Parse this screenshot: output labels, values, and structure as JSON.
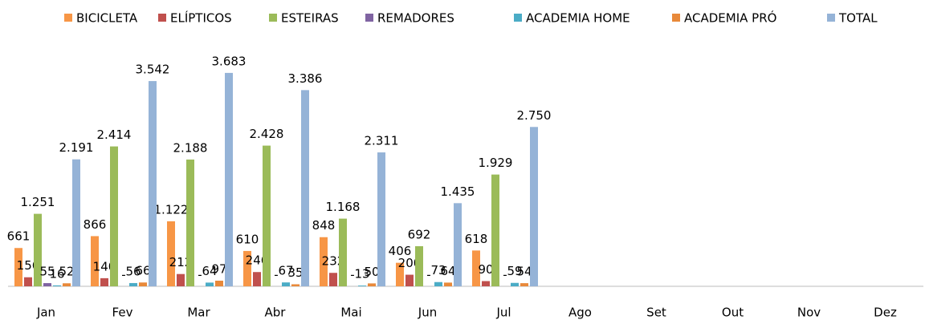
{
  "chart_data": {
    "type": "bar",
    "categories": [
      "Jan",
      "Fev",
      "Mar",
      "Abr",
      "Mai",
      "Jun",
      "Jul",
      "Ago",
      "Set",
      "Out",
      "Nov",
      "Dez"
    ],
    "series": [
      {
        "name": "BICICLETA",
        "color": "#f79646",
        "values": [
          661,
          866,
          1122,
          610,
          848,
          406,
          618,
          null,
          null,
          null,
          null,
          null
        ],
        "value_labels": [
          "661",
          "866",
          "1.122",
          "610",
          "848",
          "406",
          "618",
          null,
          null,
          null,
          null,
          null
        ]
      },
      {
        "name": "ELÍPTICOS",
        "color": "#c0504d",
        "values": [
          156,
          140,
          212,
          246,
          232,
          200,
          90,
          null,
          null,
          null,
          null,
          null
        ],
        "value_labels": [
          "156",
          "140",
          "212",
          "246",
          "232",
          "200",
          "90",
          null,
          null,
          null,
          null,
          null
        ]
      },
      {
        "name": "ESTEIRAS",
        "color": "#9bbb59",
        "values": [
          1251,
          2414,
          2188,
          2428,
          1168,
          692,
          1929,
          null,
          null,
          null,
          null,
          null
        ],
        "value_labels": [
          "1.251",
          "2.414",
          "2.188",
          "2.428",
          "1.168",
          "692",
          "1.929",
          null,
          null,
          null,
          null,
          null
        ]
      },
      {
        "name": "REMADORES",
        "color": "#8064a2",
        "values": [
          55,
          0,
          0,
          0,
          0,
          0,
          0,
          null,
          null,
          null,
          null,
          null
        ],
        "value_labels": [
          "55",
          "-",
          "-",
          "-",
          "-",
          "-",
          "-",
          null,
          null,
          null,
          null,
          null
        ]
      },
      {
        "name": "ACADEMIA HOME",
        "color": "#4bacc6",
        "values": [
          16,
          56,
          64,
          67,
          13,
          73,
          59,
          null,
          null,
          null,
          null,
          null
        ],
        "value_labels": [
          "16",
          "56",
          "64",
          "67",
          "13",
          "73",
          "59",
          null,
          null,
          null,
          null,
          null
        ]
      },
      {
        "name": "ACADEMIA PRÓ",
        "color": "#e8893a",
        "values": [
          52,
          66,
          97,
          35,
          50,
          64,
          54,
          null,
          null,
          null,
          null,
          null
        ],
        "value_labels": [
          "52",
          "66",
          "97",
          "35",
          "50",
          "64",
          "54",
          null,
          null,
          null,
          null,
          null
        ]
      },
      {
        "name": "TOTAL",
        "color": "#95b3d7",
        "values": [
          2191,
          3542,
          3683,
          3386,
          2311,
          1435,
          2750,
          null,
          null,
          null,
          null,
          null
        ],
        "value_labels": [
          "2.191",
          "3.542",
          "3.683",
          "3.386",
          "2.311",
          "1.435",
          "2.750",
          null,
          null,
          null,
          null,
          null
        ]
      }
    ],
    "ylim": [
      0,
      4000
    ],
    "legend": "top"
  }
}
